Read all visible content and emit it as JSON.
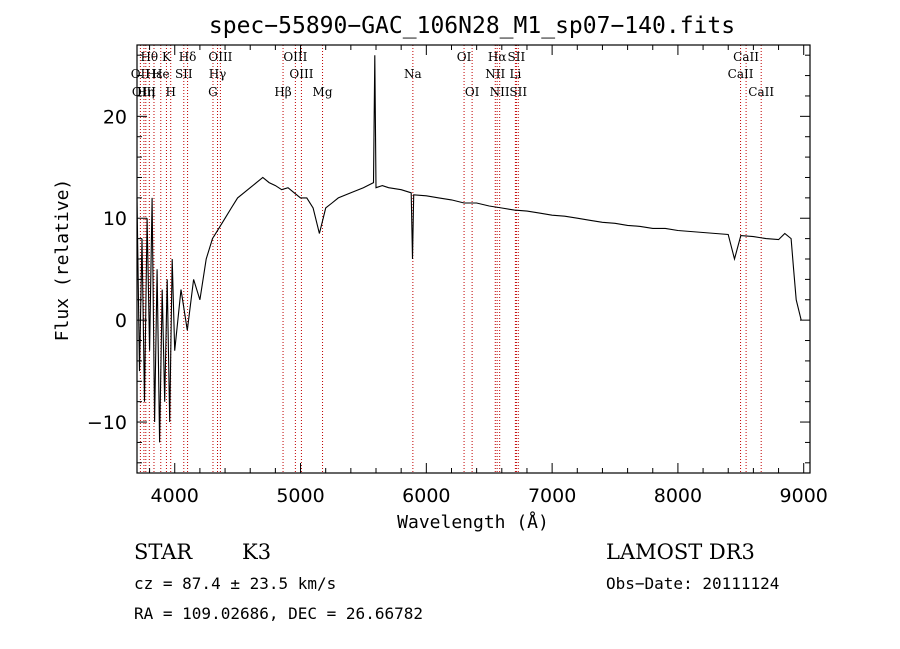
{
  "chart_data": {
    "type": "line",
    "title": "spec−55890−GAC_106N28_M1_sp07−140.fits",
    "xlabel": "Wavelength (Å)",
    "ylabel": "Flux (relative)",
    "xlim": [
      3700,
      9050
    ],
    "ylim": [
      -15,
      27
    ],
    "xticks": [
      4000,
      5000,
      6000,
      7000,
      8000,
      9000
    ],
    "yticks": [
      -10,
      0,
      10,
      20
    ],
    "ytick_labels": [
      "−10",
      "0",
      "10",
      "20"
    ],
    "series": [
      {
        "name": "flux",
        "x": [
          3700,
          3720,
          3740,
          3760,
          3780,
          3800,
          3820,
          3840,
          3860,
          3880,
          3900,
          3920,
          3940,
          3960,
          3980,
          4000,
          4050,
          4100,
          4150,
          4200,
          4250,
          4300,
          4350,
          4400,
          4450,
          4500,
          4550,
          4600,
          4650,
          4700,
          4750,
          4800,
          4850,
          4900,
          4950,
          5000,
          5050,
          5100,
          5150,
          5180,
          5200,
          5250,
          5300,
          5400,
          5500,
          5580,
          5590,
          5600,
          5650,
          5700,
          5800,
          5880,
          5890,
          5900,
          6000,
          6100,
          6200,
          6300,
          6400,
          6500,
          6600,
          6700,
          6800,
          6900,
          7000,
          7100,
          7200,
          7300,
          7400,
          7500,
          7600,
          7700,
          7800,
          7900,
          8000,
          8100,
          8200,
          8300,
          8400,
          8450,
          8500,
          8600,
          8700,
          8800,
          8850,
          8900,
          8920,
          8940,
          8960,
          8980
        ],
        "y": [
          12,
          -5,
          8,
          -8,
          10,
          -3,
          12,
          -10,
          5,
          -12,
          3,
          -8,
          4,
          -10,
          6,
          -3,
          3,
          -1,
          4,
          2,
          6,
          8,
          9,
          10,
          11,
          12,
          12.5,
          13,
          13.5,
          14,
          13.5,
          13.2,
          12.8,
          13,
          12.5,
          12,
          12,
          11,
          8.5,
          10,
          11,
          11.5,
          12,
          12.5,
          13,
          13.5,
          26,
          13,
          13.2,
          13,
          12.8,
          12.5,
          6,
          12.3,
          12.2,
          12,
          11.8,
          11.5,
          11.5,
          11.2,
          11,
          10.8,
          10.7,
          10.5,
          10.3,
          10.2,
          10,
          9.8,
          9.6,
          9.5,
          9.3,
          9.2,
          9,
          9,
          8.8,
          8.7,
          8.6,
          8.5,
          8.4,
          6,
          8.3,
          8.2,
          8,
          7.9,
          8.5,
          8,
          5,
          2,
          1,
          0
        ]
      }
    ],
    "line_markers": [
      {
        "label": "Hθ",
        "wavelength": 3798,
        "row": 1
      },
      {
        "label": "OII",
        "wavelength": 3727,
        "row": 2
      },
      {
        "label": "OIII",
        "wavelength": 3755,
        "row": 3
      },
      {
        "label": "Hε",
        "wavelength": 3835,
        "row": 2
      },
      {
        "label": "Hη",
        "wavelength": 3770,
        "row": 3
      },
      {
        "label": "K",
        "wavelength": 3934,
        "row": 1
      },
      {
        "label": "He",
        "wavelength": 3889,
        "row": 2
      },
      {
        "label": "SII",
        "wavelength": 4072,
        "row": 2
      },
      {
        "label": "H",
        "wavelength": 3968,
        "row": 3
      },
      {
        "label": "Hδ",
        "wavelength": 4102,
        "row": 1
      },
      {
        "label": "OIII",
        "wavelength": 4363,
        "row": 1
      },
      {
        "label": "Hγ",
        "wavelength": 4340,
        "row": 2
      },
      {
        "label": "G",
        "wavelength": 4304,
        "row": 3
      },
      {
        "label": "OIII",
        "wavelength": 4959,
        "row": 1
      },
      {
        "label": "OIII",
        "wavelength": 5007,
        "row": 2
      },
      {
        "label": "Hβ",
        "wavelength": 4861,
        "row": 3
      },
      {
        "label": "Mg",
        "wavelength": 5175,
        "row": 3
      },
      {
        "label": "Na",
        "wavelength": 5893,
        "row": 2
      },
      {
        "label": "OI",
        "wavelength": 6300,
        "row": 1
      },
      {
        "label": "OI",
        "wavelength": 6364,
        "row": 3
      },
      {
        "label": "Hα",
        "wavelength": 6563,
        "row": 1
      },
      {
        "label": "SII",
        "wavelength": 6716,
        "row": 1
      },
      {
        "label": "NII",
        "wavelength": 6548,
        "row": 2
      },
      {
        "label": "Li",
        "wavelength": 6708,
        "row": 2
      },
      {
        "label": "NII",
        "wavelength": 6583,
        "row": 3
      },
      {
        "label": "SII",
        "wavelength": 6731,
        "row": 3
      },
      {
        "label": "CaII",
        "wavelength": 8542,
        "row": 1
      },
      {
        "label": "CaII",
        "wavelength": 8498,
        "row": 2
      },
      {
        "label": "CaII",
        "wavelength": 8662,
        "row": 3
      }
    ],
    "marker_color": "#c00000",
    "line_color": "#000000"
  },
  "footer": {
    "object_class": "STAR",
    "subclass": "K3",
    "survey": "LAMOST DR3",
    "cz_text": "cz = 87.4 ± 23.5 km/s",
    "obs_date_text": "Obs−Date: 20111124",
    "radec_text": "RA = 109.02686, DEC =  26.66782"
  }
}
